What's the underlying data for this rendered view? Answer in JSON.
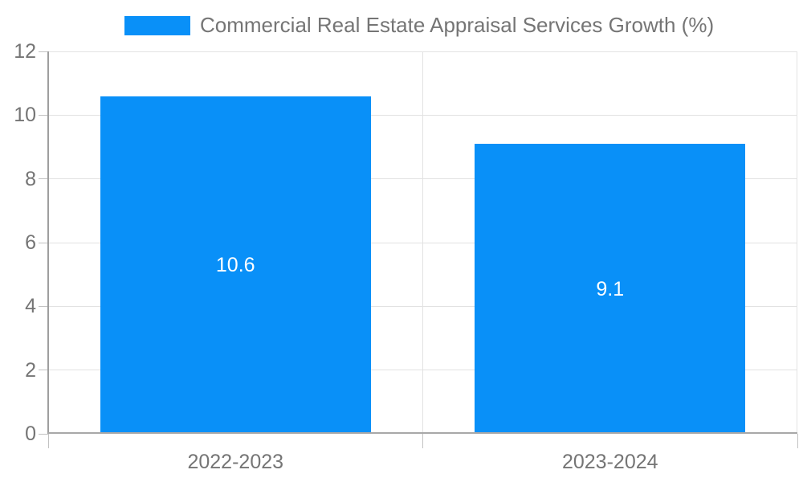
{
  "legend": {
    "label": "Commercial Real Estate Appraisal Services Growth (%)",
    "swatch_color": "#0990f8"
  },
  "chart_data": {
    "type": "bar",
    "title": "Commercial Real Estate Appraisal Services Growth (%)",
    "categories": [
      "2022-2023",
      "2023-2024"
    ],
    "series": [
      {
        "name": "Commercial Real Estate Appraisal Services Growth (%)",
        "values": [
          10.6,
          9.1
        ]
      }
    ],
    "value_labels": [
      "10.6",
      "9.1"
    ],
    "xlabel": "",
    "ylabel": "",
    "ylim": [
      0,
      12
    ],
    "yticks": [
      0,
      2,
      4,
      6,
      8,
      10,
      12
    ],
    "grid": true,
    "legend_position": "top",
    "bar_color": "#0990f8",
    "value_label_color": "#ffffff",
    "axis_text_color": "#757575",
    "gridline_color": "#e2e2e2",
    "axis_line_color": "#9e9e9e",
    "background_color": "#ffffff"
  }
}
